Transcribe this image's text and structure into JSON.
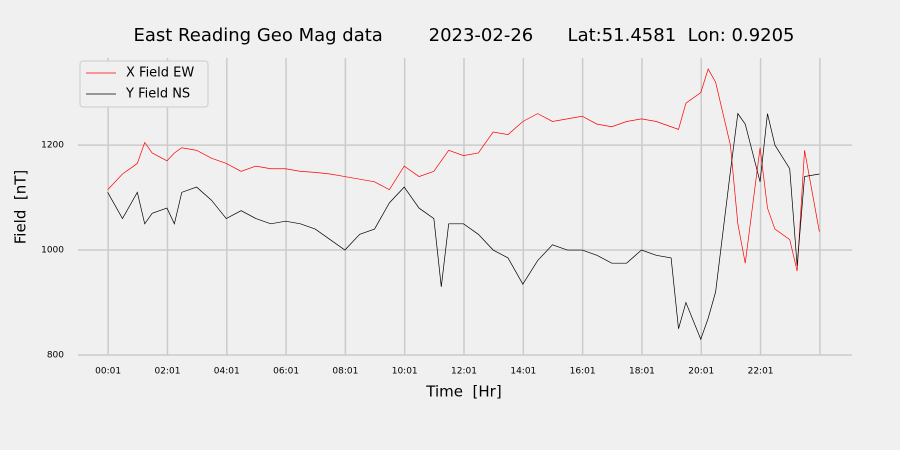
{
  "chart_data": {
    "type": "line",
    "title": "East Reading Geo Mag data        2023-02-26      Lat:51.4581  Lon: 0.9205",
    "xlabel": "Time  [Hr]",
    "ylabel": "Field  [nT]",
    "x": [
      0,
      0.5,
      1,
      1.25,
      1.5,
      2,
      2.25,
      2.5,
      3,
      3.5,
      4,
      4.5,
      5,
      5.5,
      6,
      6.5,
      7,
      7.5,
      8,
      8.5,
      9,
      9.5,
      10,
      10.5,
      11,
      11.25,
      11.5,
      12,
      12.5,
      13,
      13.5,
      14,
      14.5,
      15,
      15.5,
      16,
      16.5,
      17,
      17.5,
      18,
      18.5,
      19,
      19.25,
      19.5,
      20,
      20.25,
      20.5,
      21,
      21.25,
      21.5,
      22,
      22.25,
      22.5,
      23,
      23.25,
      23.5,
      24
    ],
    "series": [
      {
        "name": "X Field EW",
        "color": "#ff0000",
        "values": [
          1115,
          1145,
          1165,
          1205,
          1185,
          1170,
          1185,
          1195,
          1190,
          1175,
          1165,
          1150,
          1160,
          1155,
          1155,
          1150,
          1148,
          1145,
          1140,
          1135,
          1130,
          1115,
          1160,
          1140,
          1150,
          1170,
          1190,
          1180,
          1185,
          1225,
          1220,
          1245,
          1260,
          1245,
          1250,
          1255,
          1240,
          1235,
          1245,
          1250,
          1245,
          1235,
          1230,
          1280,
          1300,
          1345,
          1320,
          1200,
          1050,
          975,
          1195,
          1080,
          1040,
          1020,
          960,
          1190,
          1035
        ]
      },
      {
        "name": "Y Field NS",
        "color": "#000000",
        "values": [
          1110,
          1060,
          1110,
          1050,
          1070,
          1080,
          1050,
          1110,
          1120,
          1095,
          1060,
          1075,
          1060,
          1050,
          1055,
          1050,
          1040,
          1020,
          1000,
          1030,
          1040,
          1090,
          1120,
          1080,
          1060,
          930,
          1050,
          1050,
          1030,
          1000,
          985,
          935,
          980,
          1010,
          1000,
          1000,
          990,
          975,
          975,
          1000,
          990,
          985,
          850,
          900,
          830,
          870,
          920,
          1150,
          1260,
          1240,
          1130,
          1260,
          1200,
          1155,
          970,
          1140,
          1145
        ]
      }
    ],
    "xlim": [
      -1.0,
      25.1
    ],
    "xticks": [
      {
        "value": 0.0167,
        "label": "00:01"
      },
      {
        "value": 2.0167,
        "label": "02:01"
      },
      {
        "value": 4.0167,
        "label": "04:01"
      },
      {
        "value": 6.0167,
        "label": "06:01"
      },
      {
        "value": 8.0167,
        "label": "08:01"
      },
      {
        "value": 10.0167,
        "label": "10:01"
      },
      {
        "value": 12.0167,
        "label": "12:01"
      },
      {
        "value": 14.0167,
        "label": "14:01"
      },
      {
        "value": 16.0167,
        "label": "16:01"
      },
      {
        "value": 18.0167,
        "label": "18:01"
      },
      {
        "value": 20.0167,
        "label": "20:01"
      },
      {
        "value": 22.0167,
        "label": "22:01"
      },
      {
        "value": 24.0167,
        "label": null
      }
    ],
    "ylim": [
      800,
      1366
    ],
    "yticks": [
      800,
      1000,
      1200
    ],
    "grid": true,
    "legend": "upper left"
  }
}
